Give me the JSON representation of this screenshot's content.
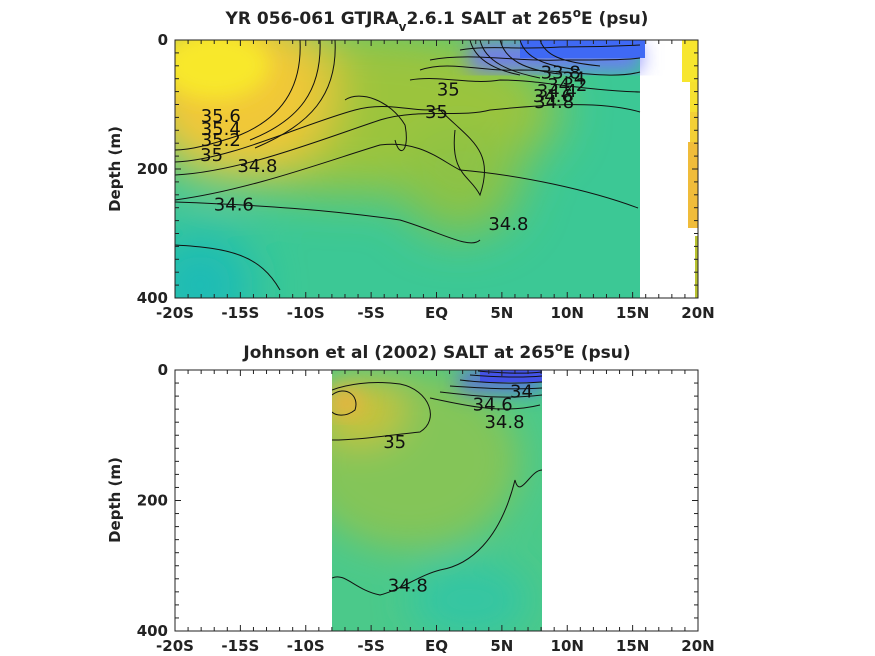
{
  "chart_data": [
    {
      "type": "heatmap",
      "title_main": "YR 056-061 GTJRA",
      "title_sub": "v",
      "title_rest": "2.6.1 SALT at 265",
      "title_deg": "o",
      "title_end": "E (psu)",
      "ylabel": "Depth (m)",
      "xlim": [
        -20,
        20
      ],
      "ylim": [
        400,
        0
      ],
      "xticks": [
        -20,
        -15,
        -10,
        -5,
        0,
        5,
        10,
        15,
        20
      ],
      "xticklabels": [
        "-20S",
        "-15S",
        "-10S",
        "-5S",
        "EQ",
        "5N",
        "10N",
        "15N",
        "20N"
      ],
      "yticks": [
        0,
        200,
        400
      ],
      "yticklabels": [
        "0",
        "200",
        "400"
      ],
      "colormap": "parula",
      "clim": [
        33.8,
        35.8
      ],
      "contour_labels": [
        {
          "text": "35.6",
          "x": -16.5,
          "y": 118
        },
        {
          "text": "35.4",
          "x": -16.5,
          "y": 138
        },
        {
          "text": "35.2",
          "x": -16.5,
          "y": 155
        },
        {
          "text": "35",
          "x": -17.2,
          "y": 178
        },
        {
          "text": "34.8",
          "x": -13.7,
          "y": 195
        },
        {
          "text": "34.6",
          "x": -15.5,
          "y": 255
        },
        {
          "text": "35",
          "x": 0.9,
          "y": 77
        },
        {
          "text": "35",
          "x": 0.0,
          "y": 112
        },
        {
          "text": "34.8",
          "x": 5.5,
          "y": 285
        },
        {
          "text": "33.8",
          "x": 9.5,
          "y": 50
        },
        {
          "text": "34",
          "x": 10.5,
          "y": 60
        },
        {
          "text": "34.2",
          "x": 10.0,
          "y": 70
        },
        {
          "text": "34.4",
          "x": 9.2,
          "y": 79
        },
        {
          "text": "34.6",
          "x": 8.9,
          "y": 87
        },
        {
          "text": "34.8",
          "x": 9.0,
          "y": 96
        }
      ]
    },
    {
      "type": "heatmap",
      "title_main": "Johnson et al (2002) SALT at 265",
      "title_deg": "o",
      "title_end": "E (psu)",
      "ylabel": "Depth (m)",
      "xlim": [
        -20,
        20
      ],
      "ylim": [
        400,
        0
      ],
      "data_xrange": [
        -8,
        8
      ],
      "xticks": [
        -20,
        -15,
        -10,
        -5,
        0,
        5,
        10,
        15,
        20
      ],
      "xticklabels": [
        "-20S",
        "-15S",
        "-10S",
        "-5S",
        "EQ",
        "5N",
        "10N",
        "15N",
        "20N"
      ],
      "yticks": [
        0,
        200,
        400
      ],
      "yticklabels": [
        "0",
        "200",
        "400"
      ],
      "colormap": "parula",
      "clim": [
        33.8,
        35.8
      ],
      "contour_labels": [
        {
          "text": "34",
          "x": 6.5,
          "y": 33
        },
        {
          "text": "34.6",
          "x": 4.3,
          "y": 53
        },
        {
          "text": "34.8",
          "x": 5.2,
          "y": 80
        },
        {
          "text": "35",
          "x": -3.2,
          "y": 110
        },
        {
          "text": "34.8",
          "x": -2.2,
          "y": 330
        }
      ]
    }
  ]
}
